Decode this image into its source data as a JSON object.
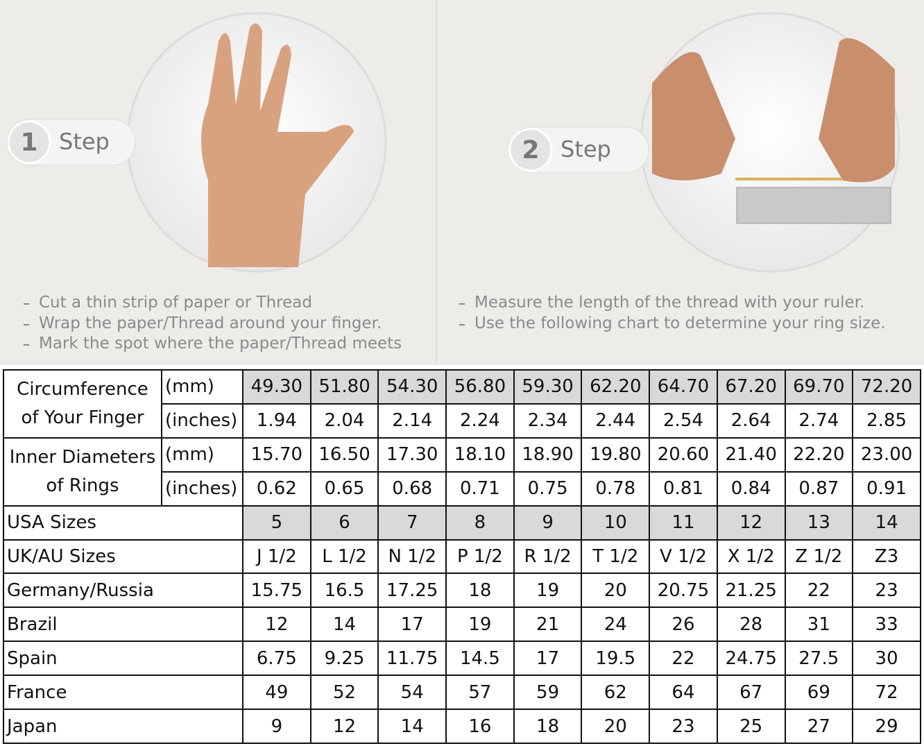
{
  "steps": [
    {
      "number": "1",
      "label": "Step",
      "instructions": [
        "Cut a thin strip of paper or Thread",
        "Wrap the paper/Thread around your finger.",
        "Mark the spot where the paper/Thread meets"
      ]
    },
    {
      "number": "2",
      "label": "Step",
      "instructions": [
        "Measure the length of the thread with your ruler.",
        "Use the following chart to determine your ring size."
      ]
    }
  ],
  "table": {
    "measurement_groups": [
      {
        "label_lines": [
          "Circumference",
          "of Your Finger"
        ],
        "rows": [
          {
            "unit": "(mm)",
            "highlight": "#d9d9d9",
            "values": [
              "49.30",
              "51.80",
              "54.30",
              "56.80",
              "59.30",
              "62.20",
              "64.70",
              "67.20",
              "69.70",
              "72.20"
            ]
          },
          {
            "unit": "(inches)",
            "values": [
              "1.94",
              "2.04",
              "2.14",
              "2.24",
              "2.34",
              "2.44",
              "2.54",
              "2.64",
              "2.74",
              "2.85"
            ]
          }
        ]
      },
      {
        "label_lines": [
          "Inner Diameters",
          "of Rings"
        ],
        "rows": [
          {
            "unit": "(mm)",
            "values": [
              "15.70",
              "16.50",
              "17.30",
              "18.10",
              "18.90",
              "19.80",
              "20.60",
              "21.40",
              "22.20",
              "23.00"
            ]
          },
          {
            "unit": "(inches)",
            "values": [
              "0.62",
              "0.65",
              "0.68",
              "0.71",
              "0.75",
              "0.78",
              "0.81",
              "0.84",
              "0.87",
              "0.91"
            ]
          }
        ]
      }
    ],
    "size_rows": [
      {
        "label": "USA Sizes",
        "highlight": "#d9d9d9",
        "values": [
          "5",
          "6",
          "7",
          "8",
          "9",
          "10",
          "11",
          "12",
          "13",
          "14"
        ]
      },
      {
        "label": "UK/AU Sizes",
        "values": [
          "J 1/2",
          "L 1/2",
          "N 1/2",
          "P 1/2",
          "R 1/2",
          "T 1/2",
          "V 1/2",
          "X 1/2",
          "Z 1/2",
          "Z3"
        ]
      },
      {
        "label": "Germany/Russia",
        "values": [
          "15.75",
          "16.5",
          "17.25",
          "18",
          "19",
          "20",
          "20.75",
          "21.25",
          "22",
          "23"
        ]
      },
      {
        "label": "Brazil",
        "values": [
          "12",
          "14",
          "17",
          "19",
          "21",
          "24",
          "26",
          "28",
          "31",
          "33"
        ]
      },
      {
        "label": "Spain",
        "values": [
          "6.75",
          "9.25",
          "11.75",
          "14.5",
          "17",
          "19.5",
          "22",
          "24.75",
          "27.5",
          "30"
        ]
      },
      {
        "label": "France",
        "values": [
          "49",
          "52",
          "54",
          "57",
          "59",
          "62",
          "64",
          "67",
          "69",
          "72"
        ]
      },
      {
        "label": "Japan",
        "values": [
          "9",
          "12",
          "14",
          "16",
          "18",
          "20",
          "23",
          "25",
          "27",
          "29"
        ]
      }
    ]
  }
}
